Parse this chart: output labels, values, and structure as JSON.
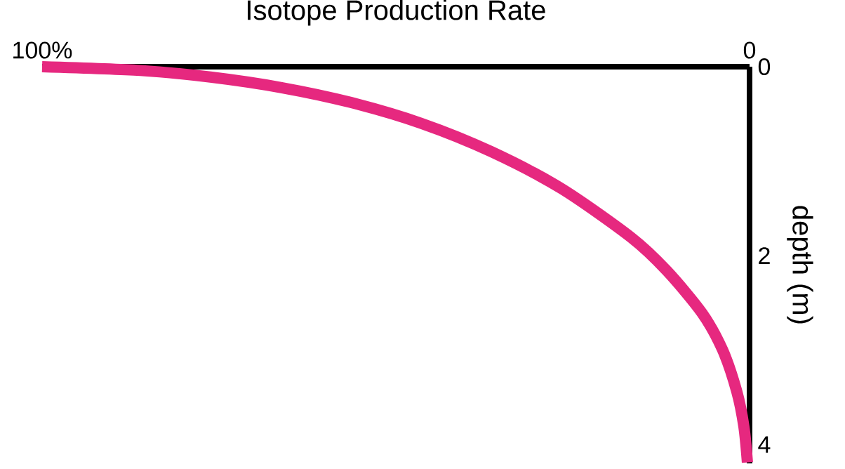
{
  "chart_data": {
    "type": "line",
    "xlabel": "Isotope Production Rate",
    "ylabel": "depth (m)",
    "x": [
      100,
      86.1,
      76.2,
      66.3,
      56.3,
      46.4,
      36.5,
      26.6,
      16.7,
      11.7,
      6.7,
      3.8,
      1.8,
      0.8,
      0.3
    ],
    "values": [
      0,
      0.04,
      0.11,
      0.22,
      0.38,
      0.6,
      0.9,
      1.29,
      1.81,
      2.16,
      2.61,
      3.0,
      3.44,
      3.81,
      4.19
    ],
    "color": "#e6287f",
    "xlim": [
      100,
      0
    ],
    "ylim": [
      4.2,
      0
    ],
    "xticks": [
      {
        "value": 100,
        "label": "100%"
      },
      0
    ],
    "yticks": [
      0,
      2,
      4
    ]
  }
}
